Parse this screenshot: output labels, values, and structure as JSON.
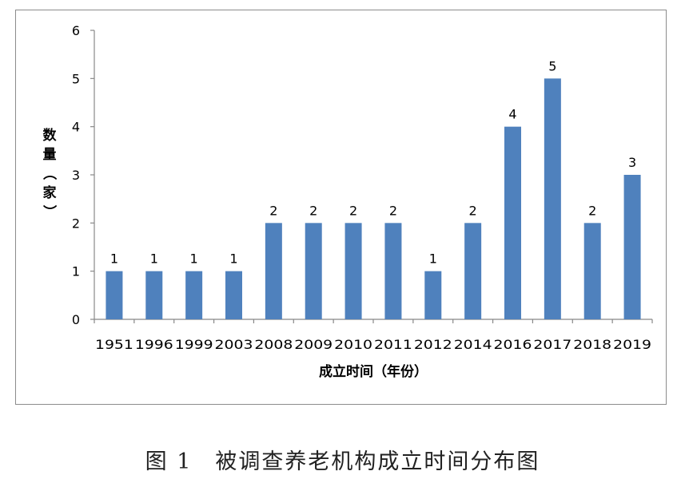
{
  "caption": "图 1　被调查养老机构成立时间分布图",
  "chart_data": {
    "type": "bar",
    "categories": [
      "1951",
      "1996",
      "1999",
      "2003",
      "2008",
      "2009",
      "2010",
      "2011",
      "2012",
      "2014",
      "2016",
      "2017",
      "2018",
      "2019"
    ],
    "values": [
      1,
      1,
      1,
      1,
      2,
      2,
      2,
      2,
      1,
      2,
      4,
      5,
      2,
      3
    ],
    "xlabel": "成立时间（年份）",
    "ylabel": "数量（家）",
    "ylim": [
      0,
      6
    ],
    "yticks": [
      0,
      1,
      2,
      3,
      4,
      5,
      6
    ],
    "bar_color": "#4f81bd",
    "grid": false,
    "legend": "none"
  }
}
